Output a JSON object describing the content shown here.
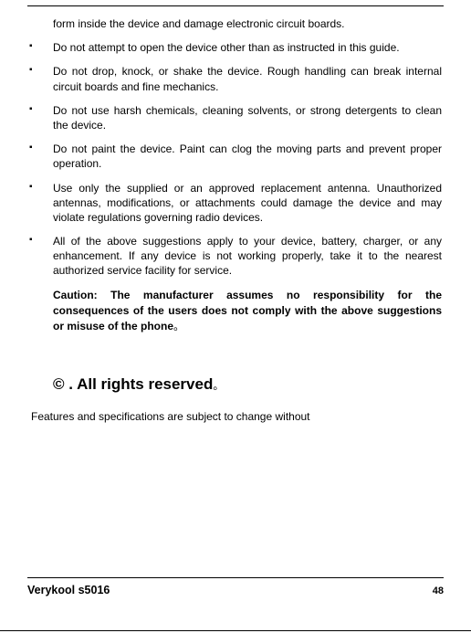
{
  "continuation": "form inside the device and damage electronic circuit boards.",
  "bullets": [
    "Do not attempt to open the device other than as instructed in this guide.",
    "Do not drop, knock, or shake the device. Rough handling can break internal circuit boards and fine mechanics.",
    "Do not use harsh chemicals, cleaning solvents, or strong detergents to clean the device.",
    "Do not paint the device. Paint can clog the moving parts and prevent proper operation.",
    "Use only the supplied or an approved replacement antenna. Unauthorized antennas, modifications, or attachments could damage the device and may violate regulations governing radio devices.",
    "All of the above suggestions apply to your device, battery, charger, or any enhancement. If any device is not working properly, take it to the nearest authorized service facility for service."
  ],
  "caution_lead": "Caution: The manufacturer assumes no responsibility for the consequences of the users does not comply with the above suggestions or misuse of the phone",
  "caution_dot": "。",
  "rights_heading": "© . All rights reserved",
  "rights_dot": "。",
  "features_line": "Features and specifications are subject to change without",
  "footer_model": "Verykool s5016",
  "footer_page": "48",
  "bullet_glyph": "▪",
  "colors": {
    "text": "#000000",
    "background": "#ffffff",
    "rule": "#000000"
  },
  "typography": {
    "body_fontsize_pt": 9,
    "heading_fontsize_pt": 13,
    "footer_fontsize_pt": 9.5,
    "font_family": "Arial"
  }
}
